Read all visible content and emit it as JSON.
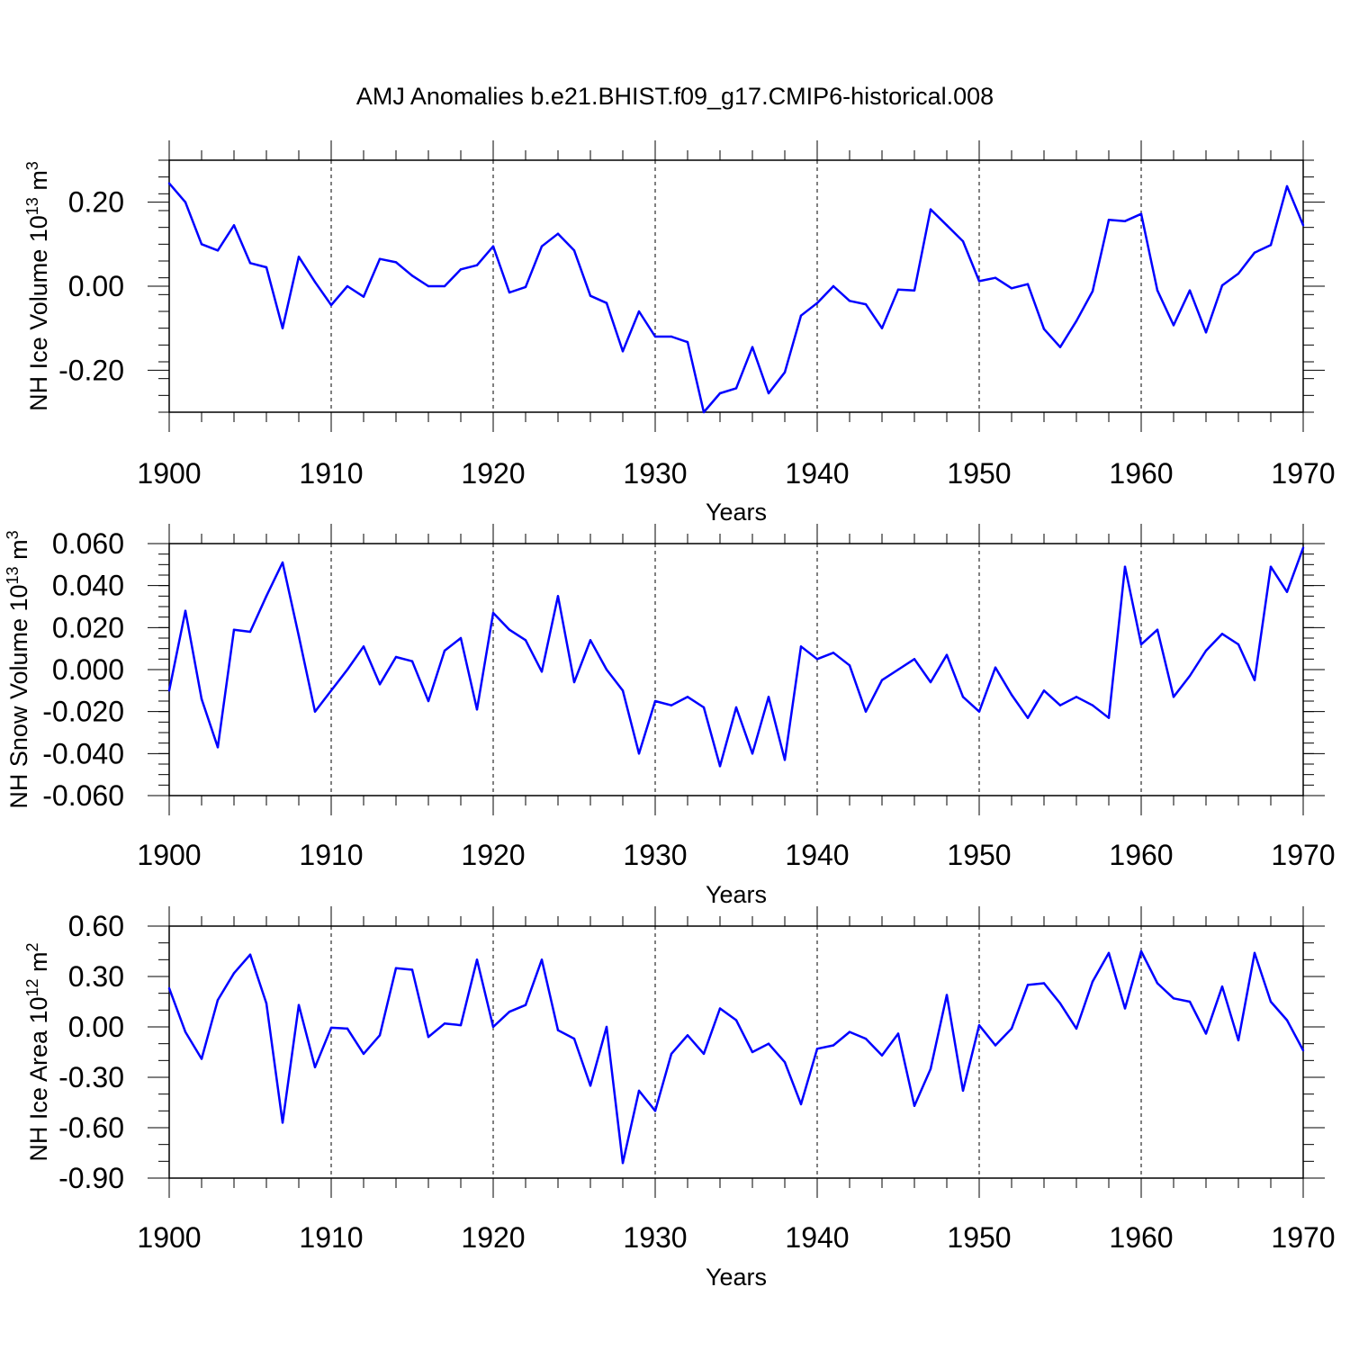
{
  "figure_title": "AMJ Anomalies b.e21.BHIST.f09_g17.CMIP6-historical.008",
  "colors": {
    "line": "#0000ff",
    "axis": "#000000",
    "grid": "#000000"
  },
  "chart_data": [
    {
      "type": "line",
      "ylabel": {
        "text": "NH Ice Volume 10",
        "exp": "13",
        "unit_pre": " m",
        "unit_exp": "3"
      },
      "xlabel": "Years",
      "xlim": [
        1900,
        1970
      ],
      "ylim": [
        -0.3,
        0.3
      ],
      "xticks": [
        1900,
        1910,
        1920,
        1930,
        1940,
        1950,
        1960,
        1970
      ],
      "xtick_labels": [
        "1900",
        "1910",
        "1920",
        "1930",
        "1940",
        "1950",
        "1960",
        "1970"
      ],
      "yticks": [
        0.2,
        0.0,
        -0.2
      ],
      "ytick_labels": [
        "0.20",
        "0.00",
        "-0.20"
      ],
      "y_minor_step": 0.04,
      "grid": "vertical dashed at 10-year marks",
      "x": [
        1900,
        1901,
        1902,
        1903,
        1904,
        1905,
        1906,
        1907,
        1908,
        1909,
        1910,
        1911,
        1912,
        1913,
        1914,
        1915,
        1916,
        1917,
        1918,
        1919,
        1920,
        1921,
        1922,
        1923,
        1924,
        1925,
        1926,
        1927,
        1928,
        1929,
        1930,
        1931,
        1932,
        1933,
        1934,
        1935,
        1936,
        1937,
        1938,
        1939,
        1940,
        1941,
        1942,
        1943,
        1944,
        1945,
        1946,
        1947,
        1948,
        1949,
        1950,
        1951,
        1952,
        1953,
        1954,
        1955,
        1956,
        1957,
        1958,
        1959,
        1960,
        1961,
        1962,
        1963,
        1964,
        1965,
        1966,
        1967,
        1968,
        1969,
        1970
      ],
      "values": [
        0.245,
        0.2,
        0.1,
        0.085,
        0.145,
        0.055,
        0.045,
        -0.1,
        0.07,
        0.01,
        -0.045,
        0.0,
        -0.025,
        0.065,
        0.057,
        0.025,
        0.0,
        0.0,
        0.04,
        0.05,
        0.095,
        -0.015,
        -0.002,
        0.095,
        0.125,
        0.085,
        -0.023,
        -0.04,
        -0.155,
        -0.06,
        -0.12,
        -0.12,
        -0.133,
        -0.3,
        -0.255,
        -0.243,
        -0.145,
        -0.255,
        -0.205,
        -0.07,
        -0.04,
        0.0,
        -0.035,
        -0.043,
        -0.1,
        -0.008,
        -0.01,
        0.183,
        0.145,
        0.107,
        0.012,
        0.02,
        -0.005,
        0.005,
        -0.102,
        -0.145,
        -0.083,
        -0.012,
        0.158,
        0.155,
        0.172,
        -0.01,
        -0.093,
        -0.01,
        -0.11,
        0.002,
        0.03,
        0.08,
        0.098,
        0.238,
        0.145
      ]
    },
    {
      "type": "line",
      "ylabel": {
        "text": "NH Snow Volume 10",
        "exp": "13",
        "unit_pre": " m",
        "unit_exp": "3"
      },
      "xlabel": "Years",
      "xlim": [
        1900,
        1970
      ],
      "ylim": [
        -0.06,
        0.06
      ],
      "xticks": [
        1900,
        1910,
        1920,
        1930,
        1940,
        1950,
        1960,
        1970
      ],
      "xtick_labels": [
        "1900",
        "1910",
        "1920",
        "1930",
        "1940",
        "1950",
        "1960",
        "1970"
      ],
      "yticks": [
        0.06,
        0.04,
        0.02,
        0.0,
        -0.02,
        -0.04,
        -0.06
      ],
      "ytick_labels": [
        "0.060",
        "0.040",
        "0.020",
        "0.000",
        "-0.020",
        "-0.040",
        "-0.060"
      ],
      "y_minor_step": 0.005,
      "grid": "vertical dashed at 10-year marks",
      "x": [
        1900,
        1901,
        1902,
        1903,
        1904,
        1905,
        1906,
        1907,
        1908,
        1909,
        1910,
        1911,
        1912,
        1913,
        1914,
        1915,
        1916,
        1917,
        1918,
        1919,
        1920,
        1921,
        1922,
        1923,
        1924,
        1925,
        1926,
        1927,
        1928,
        1929,
        1930,
        1931,
        1932,
        1933,
        1934,
        1935,
        1936,
        1937,
        1938,
        1939,
        1940,
        1941,
        1942,
        1943,
        1944,
        1945,
        1946,
        1947,
        1948,
        1949,
        1950,
        1951,
        1952,
        1953,
        1954,
        1955,
        1956,
        1957,
        1958,
        1959,
        1960,
        1961,
        1962,
        1963,
        1964,
        1965,
        1966,
        1967,
        1968,
        1969,
        1970
      ],
      "values": [
        -0.01,
        0.028,
        -0.014,
        -0.037,
        0.019,
        0.018,
        0.035,
        0.051,
        0.016,
        -0.02,
        -0.01,
        0.0,
        0.011,
        -0.007,
        0.006,
        0.004,
        -0.015,
        0.009,
        0.015,
        -0.019,
        0.027,
        0.019,
        0.014,
        -0.001,
        0.035,
        -0.006,
        0.014,
        0.0,
        -0.01,
        -0.04,
        -0.015,
        -0.017,
        -0.013,
        -0.018,
        -0.046,
        -0.018,
        -0.04,
        -0.013,
        -0.043,
        0.011,
        0.005,
        0.008,
        0.002,
        -0.02,
        -0.005,
        0.0,
        0.005,
        -0.006,
        0.007,
        -0.013,
        -0.02,
        0.001,
        -0.012,
        -0.023,
        -0.01,
        -0.017,
        -0.013,
        -0.017,
        -0.023,
        0.049,
        0.012,
        0.019,
        -0.013,
        -0.003,
        0.009,
        0.017,
        0.012,
        -0.005,
        0.049,
        0.037,
        0.058
      ]
    },
    {
      "type": "line",
      "ylabel": {
        "text": "NH Ice Area 10",
        "exp": "12",
        "unit_pre": " m",
        "unit_exp": "2"
      },
      "xlabel": "Years",
      "xlim": [
        1900,
        1970
      ],
      "ylim": [
        -0.9,
        0.6
      ],
      "xticks": [
        1900,
        1910,
        1920,
        1930,
        1940,
        1950,
        1960,
        1970
      ],
      "xtick_labels": [
        "1900",
        "1910",
        "1920",
        "1930",
        "1940",
        "1950",
        "1960",
        "1970"
      ],
      "yticks": [
        0.6,
        0.3,
        0.0,
        -0.3,
        -0.6,
        -0.9
      ],
      "ytick_labels": [
        "0.60",
        "0.30",
        "0.00",
        "-0.30",
        "-0.60",
        "-0.90"
      ],
      "y_minor_step": 0.1,
      "grid": "vertical dashed at 10-year marks",
      "x": [
        1900,
        1901,
        1902,
        1903,
        1904,
        1905,
        1906,
        1907,
        1908,
        1909,
        1910,
        1911,
        1912,
        1913,
        1914,
        1915,
        1916,
        1917,
        1918,
        1919,
        1920,
        1921,
        1922,
        1923,
        1924,
        1925,
        1926,
        1927,
        1928,
        1929,
        1930,
        1931,
        1932,
        1933,
        1934,
        1935,
        1936,
        1937,
        1938,
        1939,
        1940,
        1941,
        1942,
        1943,
        1944,
        1945,
        1946,
        1947,
        1948,
        1949,
        1950,
        1951,
        1952,
        1953,
        1954,
        1955,
        1956,
        1957,
        1958,
        1959,
        1960,
        1961,
        1962,
        1963,
        1964,
        1965,
        1966,
        1967,
        1968,
        1969,
        1970
      ],
      "values": [
        0.23,
        -0.03,
        -0.19,
        0.16,
        0.32,
        0.43,
        0.14,
        -0.57,
        0.13,
        -0.24,
        -0.005,
        -0.01,
        -0.16,
        -0.05,
        0.35,
        0.34,
        -0.06,
        0.02,
        0.01,
        0.4,
        0.0,
        0.09,
        0.13,
        0.4,
        -0.02,
        -0.07,
        -0.35,
        0.0,
        -0.81,
        -0.38,
        -0.5,
        -0.16,
        -0.05,
        -0.16,
        0.11,
        0.04,
        -0.15,
        -0.1,
        -0.21,
        -0.46,
        -0.13,
        -0.11,
        -0.03,
        -0.07,
        -0.17,
        -0.04,
        -0.47,
        -0.25,
        0.19,
        -0.38,
        0.01,
        -0.11,
        -0.01,
        0.25,
        0.26,
        0.14,
        -0.01,
        0.27,
        0.44,
        0.11,
        0.45,
        0.26,
        0.17,
        0.15,
        -0.04,
        0.24,
        -0.08,
        0.44,
        0.15,
        0.04,
        -0.14
      ]
    }
  ]
}
